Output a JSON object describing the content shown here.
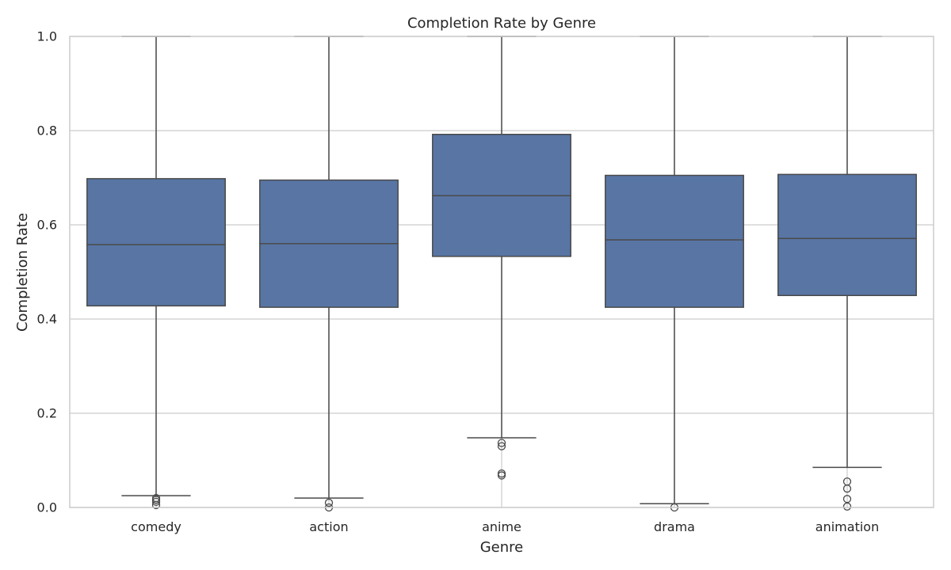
{
  "chart_data": {
    "type": "box",
    "title": "Completion Rate by Genre",
    "xlabel": "Genre",
    "ylabel": "Completion Rate",
    "ylim": [
      0.0,
      1.0
    ],
    "y_ticks": [
      "0.0",
      "0.2",
      "0.4",
      "0.6",
      "0.8",
      "1.0"
    ],
    "grid": true,
    "categories": [
      "comedy",
      "action",
      "anime",
      "drama",
      "animation"
    ],
    "boxes": [
      {
        "category": "comedy",
        "whisker_low": 0.025,
        "q1": 0.428,
        "median": 0.558,
        "q3": 0.698,
        "whisker_high": 1.0,
        "outliers": [
          0.02,
          0.016,
          0.012,
          0.005
        ]
      },
      {
        "category": "action",
        "whisker_low": 0.02,
        "q1": 0.425,
        "median": 0.56,
        "q3": 0.695,
        "whisker_high": 1.0,
        "outliers": [
          0.01,
          0.0
        ]
      },
      {
        "category": "anime",
        "whisker_low": 0.148,
        "q1": 0.533,
        "median": 0.662,
        "q3": 0.792,
        "whisker_high": 1.0,
        "outliers": [
          0.137,
          0.13,
          0.072,
          0.068
        ]
      },
      {
        "category": "drama",
        "whisker_low": 0.008,
        "q1": 0.425,
        "median": 0.568,
        "q3": 0.705,
        "whisker_high": 1.0,
        "outliers": [
          0.0
        ]
      },
      {
        "category": "animation",
        "whisker_low": 0.085,
        "q1": 0.45,
        "median": 0.571,
        "q3": 0.707,
        "whisker_high": 1.0,
        "outliers": [
          0.055,
          0.04,
          0.018,
          0.002
        ]
      }
    ],
    "colors": {
      "box_fill": "#5875a4",
      "line": "#4a4a4a",
      "grid": "#cccccc",
      "spine": "#cccccc",
      "text": "#262626",
      "background": "#ffffff"
    }
  }
}
